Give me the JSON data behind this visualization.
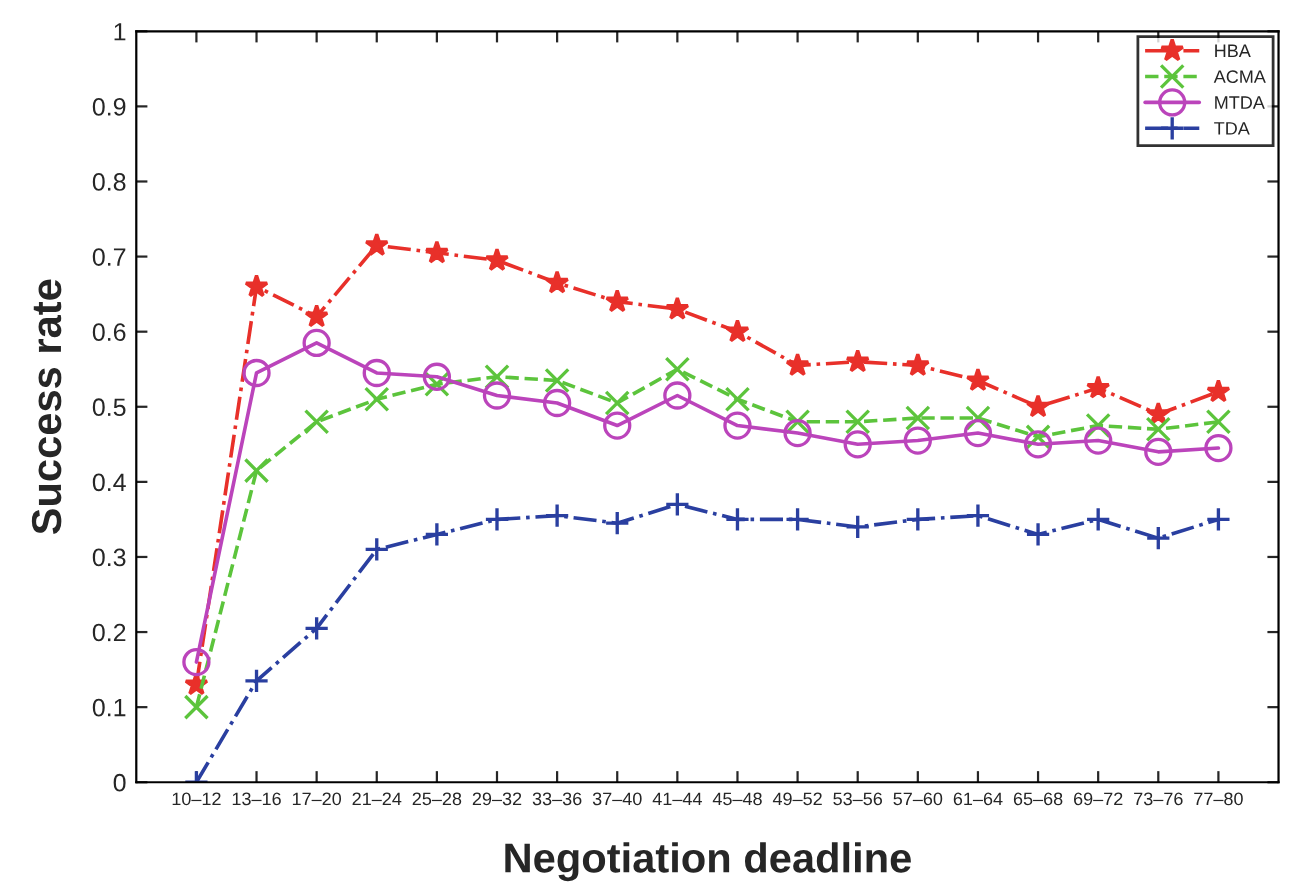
{
  "chart_data": {
    "type": "line",
    "xlabel": "Negotiation deadline",
    "ylabel": "Success rate",
    "categories": [
      "10–12",
      "13–16",
      "17–20",
      "21–24",
      "25–28",
      "29–32",
      "33–36",
      "37–40",
      "41–44",
      "45–48",
      "49–52",
      "53–56",
      "57–60",
      "61–64",
      "65–68",
      "69–72",
      "73–76",
      "77–80"
    ],
    "series": [
      {
        "name": "HBA",
        "color": "#e8302a",
        "marker": "star",
        "line_style": "dashdot",
        "values": [
          0.13,
          0.66,
          0.62,
          0.715,
          0.705,
          0.695,
          0.665,
          0.64,
          0.63,
          0.6,
          0.555,
          0.56,
          0.555,
          0.535,
          0.5,
          0.525,
          0.49,
          0.52
        ]
      },
      {
        "name": "ACMA",
        "color": "#5cc43c",
        "marker": "cross",
        "line_style": "dashed",
        "values": [
          0.1,
          0.415,
          0.48,
          0.51,
          0.53,
          0.54,
          0.535,
          0.505,
          0.55,
          0.51,
          0.48,
          0.48,
          0.485,
          0.485,
          0.46,
          0.475,
          0.47,
          0.48
        ]
      },
      {
        "name": "MTDA",
        "color": "#bb44bb",
        "marker": "circle",
        "line_style": "solid",
        "values": [
          0.16,
          0.545,
          0.585,
          0.545,
          0.54,
          0.515,
          0.505,
          0.475,
          0.515,
          0.475,
          0.465,
          0.45,
          0.455,
          0.465,
          0.45,
          0.455,
          0.44,
          0.445
        ]
      },
      {
        "name": "TDA",
        "color": "#2a3fa0",
        "marker": "plus",
        "line_style": "dashdot",
        "values": [
          0.0,
          0.135,
          0.205,
          0.31,
          0.33,
          0.35,
          0.355,
          0.345,
          0.37,
          0.35,
          0.35,
          0.34,
          0.35,
          0.355,
          0.33,
          0.35,
          0.325,
          0.35
        ]
      }
    ],
    "ylim": [
      0,
      1
    ],
    "yticks": [
      0,
      0.1,
      0.2,
      0.3,
      0.4,
      0.5,
      0.6,
      0.7,
      0.8,
      0.9,
      1
    ],
    "grid": false,
    "legend": "top right"
  }
}
